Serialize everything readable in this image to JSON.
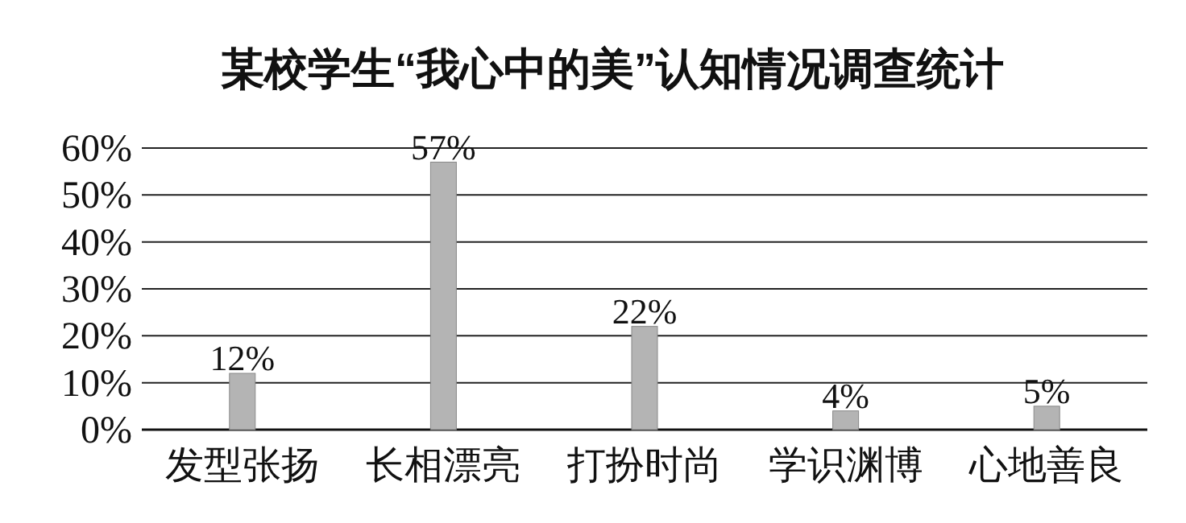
{
  "chart_data": {
    "type": "bar",
    "title": "某校学生“我心中的美”认知情况调查统计",
    "categories": [
      "发型张扬",
      "长相漂亮",
      "打扮时尚",
      "学识渊博",
      "心地善良"
    ],
    "values": [
      12,
      57,
      22,
      4,
      5
    ],
    "value_labels": [
      "12%",
      "57%",
      "22%",
      "4%",
      "5%"
    ],
    "color": "#b4b4b4",
    "ylim": [
      0,
      60
    ],
    "yticks": [
      {
        "value": 0,
        "label": "0%"
      },
      {
        "value": 10,
        "label": "10%"
      },
      {
        "value": 20,
        "label": "20%"
      },
      {
        "value": 30,
        "label": "30%"
      },
      {
        "value": 40,
        "label": "40%"
      },
      {
        "value": 50,
        "label": "50%"
      },
      {
        "value": 60,
        "label": "60%"
      }
    ],
    "grid": "y"
  }
}
